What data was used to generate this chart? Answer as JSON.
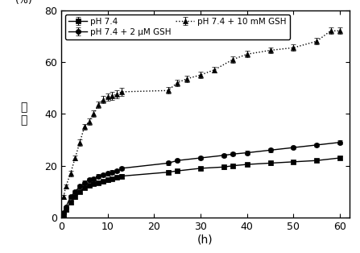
{
  "series": [
    {
      "label": "pH 7.4",
      "x": [
        0.5,
        1,
        2,
        3,
        4,
        5,
        6,
        7,
        8,
        9,
        10,
        11,
        12,
        13,
        23,
        25,
        30,
        35,
        37,
        40,
        45,
        50,
        55,
        60
      ],
      "y": [
        1,
        3,
        6,
        8,
        10,
        11.5,
        12.5,
        13,
        13.5,
        14,
        14.5,
        15,
        15.5,
        16,
        17.5,
        18,
        19,
        19.5,
        20,
        20.5,
        21,
        21.5,
        22,
        23
      ],
      "yerr": [
        0.4,
        0.5,
        0.6,
        0.7,
        0.7,
        0.7,
        0.7,
        0.7,
        0.7,
        0.7,
        0.7,
        0.7,
        0.7,
        0.7,
        0.7,
        0.7,
        0.7,
        0.7,
        0.7,
        0.7,
        0.7,
        0.7,
        0.7,
        0.7
      ],
      "color": "black",
      "marker": "s",
      "linestyle": "-"
    },
    {
      "label": "pH 7.4 + 2 μM GSH",
      "x": [
        0.5,
        1,
        2,
        3,
        4,
        5,
        6,
        7,
        8,
        9,
        10,
        11,
        12,
        13,
        23,
        25,
        30,
        35,
        37,
        40,
        45,
        50,
        55,
        60
      ],
      "y": [
        2,
        4,
        8,
        10,
        12,
        13.5,
        14.5,
        15,
        16,
        16.5,
        17,
        17.5,
        18,
        19,
        21,
        22,
        23,
        24,
        24.5,
        25,
        26,
        27,
        28,
        29
      ],
      "yerr": [
        0.4,
        0.5,
        0.6,
        0.7,
        0.7,
        0.7,
        0.7,
        0.7,
        0.7,
        0.7,
        0.7,
        0.7,
        0.7,
        0.7,
        0.7,
        0.7,
        0.7,
        0.7,
        0.7,
        0.7,
        0.7,
        0.7,
        0.7,
        0.7
      ],
      "color": "black",
      "marker": "o",
      "linestyle": "-"
    },
    {
      "label": "pH 7.4 + 10 mM GSH",
      "x": [
        0.5,
        1,
        2,
        3,
        4,
        5,
        6,
        7,
        8,
        9,
        10,
        11,
        12,
        13,
        23,
        25,
        27,
        30,
        33,
        37,
        40,
        45,
        50,
        55,
        58,
        60
      ],
      "y": [
        8,
        12,
        17,
        23,
        29,
        35,
        37,
        40,
        43.5,
        45.5,
        46.5,
        47,
        47.5,
        48.5,
        49,
        52,
        53.5,
        55,
        57,
        61,
        63,
        64.5,
        65.5,
        68,
        72,
        72
      ],
      "yerr": [
        0.8,
        0.8,
        1.0,
        1.0,
        1.2,
        1.2,
        1.3,
        1.3,
        1.3,
        1.5,
        1.5,
        1.5,
        1.5,
        1.5,
        1.2,
        1.2,
        1.2,
        1.2,
        1.2,
        1.2,
        1.2,
        1.2,
        1.2,
        1.2,
        1.2,
        1.2
      ],
      "color": "black",
      "marker": "^",
      "linestyle": ":"
    }
  ],
  "xlabel": "(h)",
  "xlim": [
    0,
    62
  ],
  "ylim": [
    0,
    80
  ],
  "xticks": [
    0,
    10,
    20,
    30,
    40,
    50,
    60
  ],
  "yticks": [
    0,
    20,
    40,
    60,
    80
  ],
  "figsize": [
    4.47,
    3.14
  ],
  "dpi": 100,
  "markersize": 4.5,
  "capsize": 2,
  "linewidth": 1.0,
  "elinewidth": 0.7,
  "legend_labels": [
    "pH 7.4",
    "pH 7.4 + 2 μM GSH",
    "pH 7.4 + 10 mM GSH"
  ]
}
